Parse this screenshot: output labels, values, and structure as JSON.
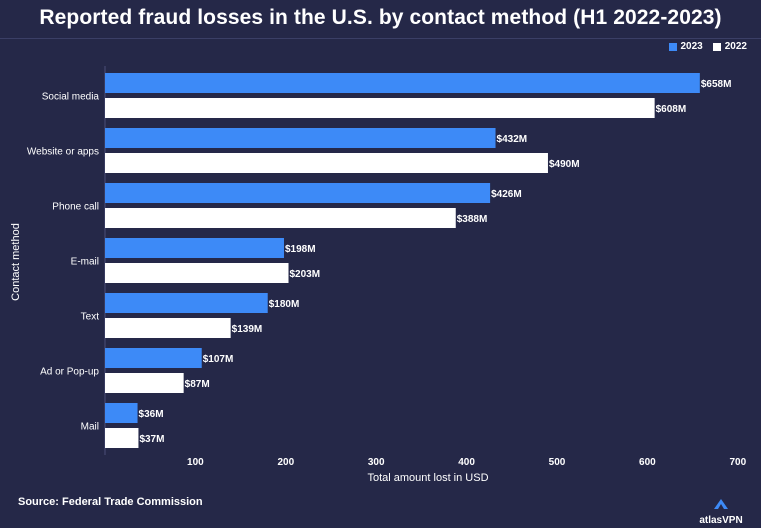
{
  "title": "Reported fraud losses in the U.S. by contact method (H1 2022-2023)",
  "source": "Source: Federal Trade Commission",
  "brand": "atlasVPN",
  "chart_data": {
    "type": "bar",
    "orientation": "horizontal",
    "title": "Reported fraud losses in the U.S. by contact method (H1 2022-2023)",
    "xlabel": "Total amount lost in USD",
    "ylabel": "Contact method",
    "categories": [
      "Social media",
      "Website or apps",
      "Phone call",
      "E-mail",
      "Text",
      "Ad or Pop-up",
      "Mail"
    ],
    "series": [
      {
        "name": "2023",
        "color": "#3d8af7",
        "values": [
          658,
          432,
          426,
          198,
          180,
          107,
          36
        ],
        "labels": [
          "$658M",
          "$432M",
          "$426M",
          "$198M",
          "$180M",
          "$107M",
          "$36M"
        ]
      },
      {
        "name": "2022",
        "color": "#ffffff",
        "values": [
          608,
          490,
          388,
          203,
          139,
          87,
          37
        ],
        "labels": [
          "$608M",
          "$490M",
          "$388M",
          "$203M",
          "$139M",
          "$87M",
          "$37M"
        ]
      }
    ],
    "xlim": [
      0,
      700
    ],
    "xticks": [
      100,
      200,
      300,
      400,
      500,
      600,
      700
    ],
    "legend": "top-right",
    "grid": false
  }
}
